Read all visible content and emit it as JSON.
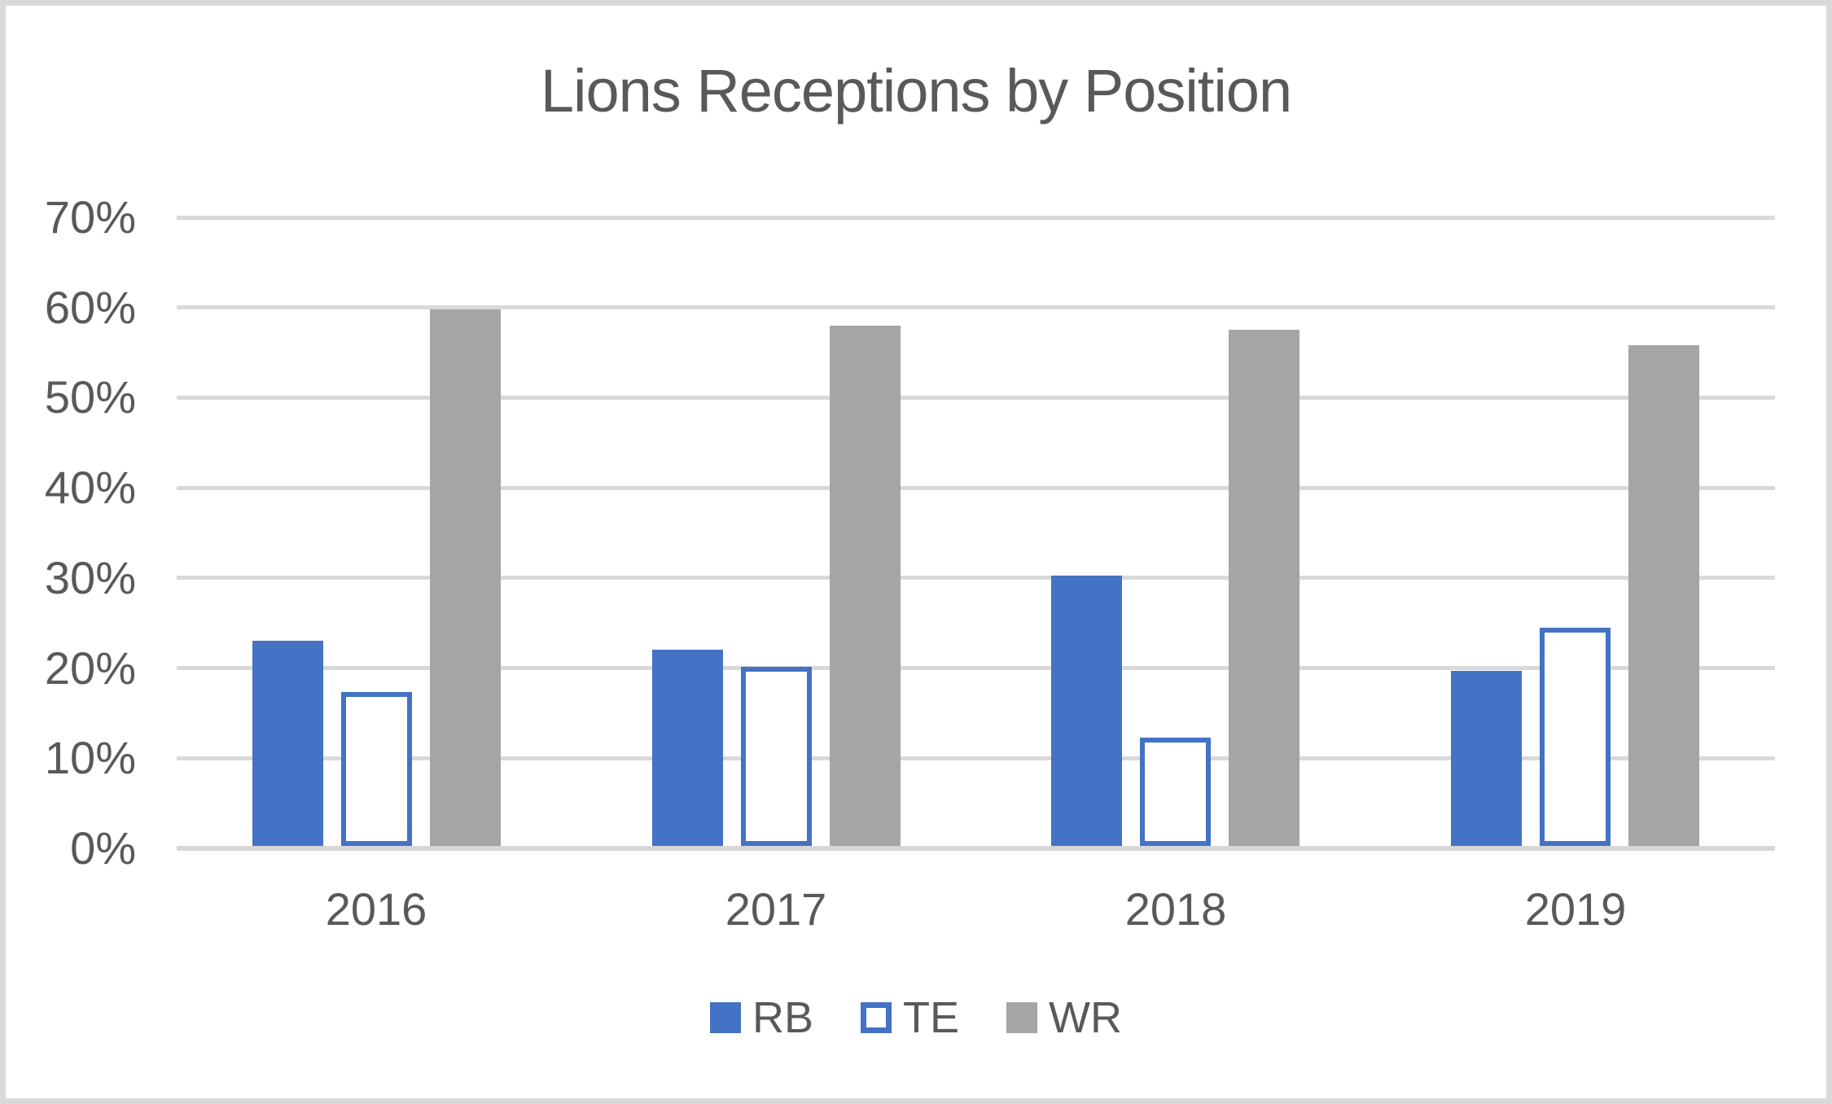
{
  "chart_data": {
    "type": "bar",
    "title": "Lions Receptions by Position",
    "categories": [
      "2016",
      "2017",
      "2018",
      "2019"
    ],
    "series": [
      {
        "name": "RB",
        "style": "fill",
        "color": "#4472C4",
        "values": [
          23.0,
          22.0,
          30.3,
          19.7
        ]
      },
      {
        "name": "TE",
        "style": "outline",
        "color": "#4472C4",
        "values": [
          17.3,
          20.1,
          12.3,
          24.5
        ]
      },
      {
        "name": "WR",
        "style": "fill",
        "color": "#A5A5A5",
        "values": [
          59.8,
          58.0,
          57.5,
          55.8
        ]
      }
    ],
    "ylim": [
      0,
      70
    ],
    "ytick_step": 10,
    "ytick_labels": [
      "0%",
      "10%",
      "20%",
      "30%",
      "40%",
      "50%",
      "60%",
      "70%"
    ],
    "xlabel": "",
    "ylabel": "",
    "grid": true,
    "legend_position": "bottom"
  },
  "colors": {
    "text": "#595959",
    "gridline": "#D9D9D9",
    "axis_line": "#D7D7D7",
    "frame_border": "#D9D9D9",
    "background": "#FFFFFF"
  }
}
